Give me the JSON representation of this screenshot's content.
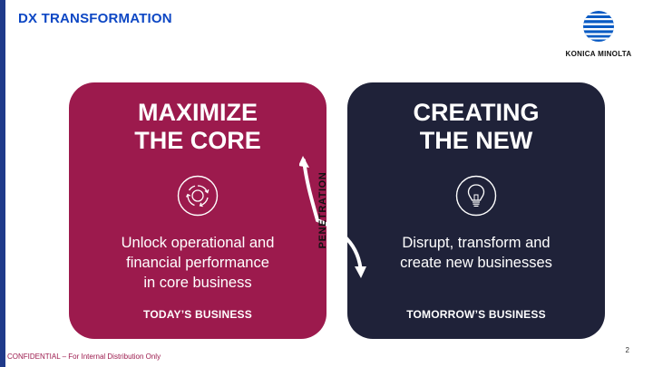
{
  "slide": {
    "title": "DX TRANSFORMATION",
    "logo_text": "KONICA MINOLTA",
    "page_number": "2",
    "footer_note": "CONFIDENTIAL – For Internal Distribution Only"
  },
  "cards": {
    "core": {
      "title": "MAXIMIZE\nTHE CORE",
      "icon": "cycle-icon",
      "description": "Unlock operational and\nfinancial performance\nin core business",
      "footer": "TODAY’S BUSINESS",
      "color": "#9c1a4d"
    },
    "new": {
      "title": "CREATING\nTHE NEW",
      "icon": "lightbulb-icon",
      "description": "Disrupt, transform and\ncreate new businesses",
      "footer": "TOMORROW’S BUSINESS",
      "color": "#1f2239"
    }
  },
  "connector": {
    "label": "PENETRATION",
    "icon": "double-arrow-icon"
  },
  "colors": {
    "title_blue": "#0d47c4",
    "strip_blue": "#1f3a8a",
    "core_maroon": "#9c1a4d",
    "new_navy": "#1f2239"
  }
}
